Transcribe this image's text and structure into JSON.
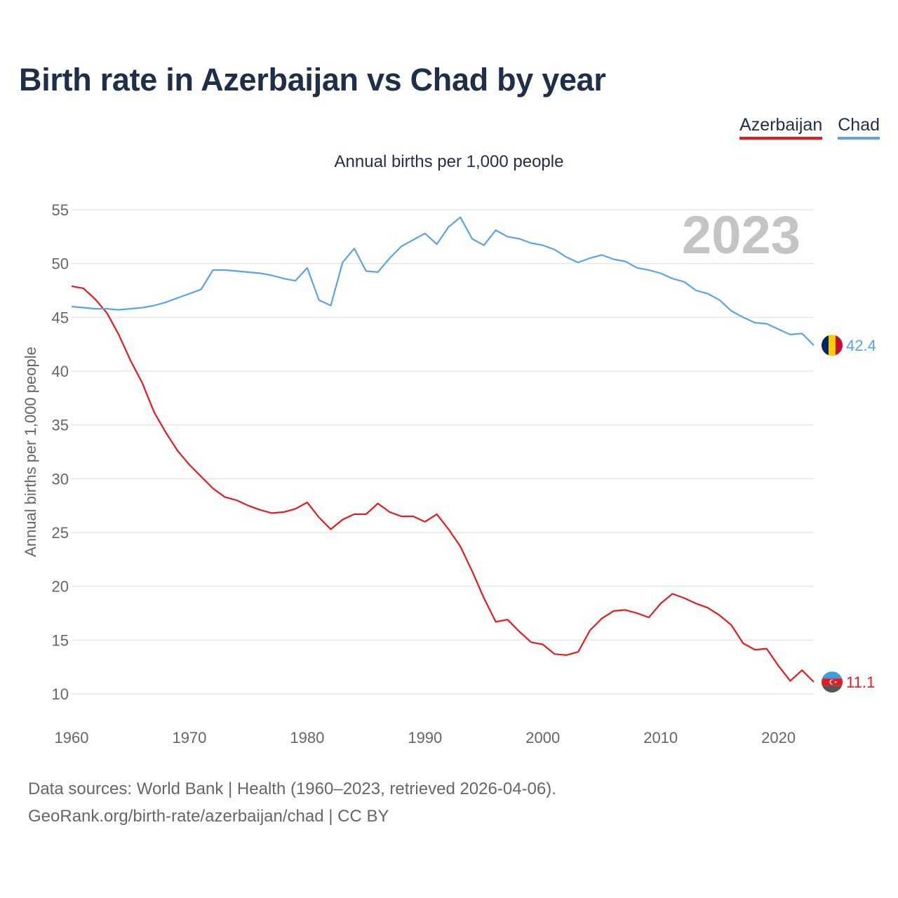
{
  "title": "Birth rate in Azerbaijan vs Chad by year",
  "legend": [
    {
      "label": "Azerbaijan",
      "color": "#e8191f"
    },
    {
      "label": "Chad",
      "color": "#5aa3e6"
    }
  ],
  "subtitle": "Annual births per 1,000 people",
  "year_watermark": "2023",
  "footer": {
    "line1": "Data sources: World Bank | Health (1960–2023, retrieved 2026-04-06).",
    "line2": "GeoRank.org/birth-rate/azerbaijan/chad | CC BY"
  },
  "chart_data": {
    "type": "line",
    "title": "Birth rate in Azerbaijan vs Chad by year",
    "xlabel": "",
    "ylabel": "Annual births per 1,000 people",
    "xlim": [
      1960,
      2023
    ],
    "ylim": [
      10,
      55
    ],
    "xticks": [
      1960,
      1970,
      1980,
      1990,
      2000,
      2010,
      2020
    ],
    "yticks": [
      10,
      15,
      20,
      25,
      30,
      35,
      40,
      45,
      50,
      55
    ],
    "grid": true,
    "legend_position": "top-right",
    "x": [
      1960,
      1961,
      1962,
      1963,
      1964,
      1965,
      1966,
      1967,
      1968,
      1969,
      1970,
      1971,
      1972,
      1973,
      1974,
      1975,
      1976,
      1977,
      1978,
      1979,
      1980,
      1981,
      1982,
      1983,
      1984,
      1985,
      1986,
      1987,
      1988,
      1989,
      1990,
      1991,
      1992,
      1993,
      1994,
      1995,
      1996,
      1997,
      1998,
      1999,
      2000,
      2001,
      2002,
      2003,
      2004,
      2005,
      2006,
      2007,
      2008,
      2009,
      2010,
      2011,
      2012,
      2013,
      2014,
      2015,
      2016,
      2017,
      2018,
      2019,
      2020,
      2021,
      2022,
      2023
    ],
    "series": [
      {
        "name": "Azerbaijan",
        "color": "#e8191f",
        "end_label": "11.1",
        "values": [
          47.9,
          47.7,
          46.7,
          45.4,
          43.4,
          41.0,
          38.9,
          36.2,
          34.3,
          32.6,
          31.3,
          30.2,
          29.1,
          28.3,
          28.0,
          27.5,
          27.1,
          26.8,
          26.9,
          27.2,
          27.8,
          26.4,
          25.3,
          26.2,
          26.7,
          26.7,
          27.7,
          26.9,
          26.5,
          26.5,
          26.0,
          26.7,
          25.3,
          23.7,
          21.4,
          18.9,
          16.7,
          16.9,
          15.8,
          14.8,
          14.6,
          13.7,
          13.6,
          13.9,
          15.9,
          17.0,
          17.7,
          17.8,
          17.5,
          17.1,
          18.4,
          19.3,
          18.9,
          18.4,
          18.0,
          17.3,
          16.4,
          14.7,
          14.1,
          14.2,
          12.6,
          11.2,
          12.2,
          11.1
        ]
      },
      {
        "name": "Chad",
        "color": "#5aa3e6",
        "end_label": "42.4",
        "values": [
          46.0,
          45.9,
          45.8,
          45.8,
          45.7,
          45.8,
          45.9,
          46.1,
          46.4,
          46.8,
          47.2,
          47.6,
          49.4,
          49.4,
          49.3,
          49.2,
          49.1,
          48.9,
          48.6,
          48.4,
          49.6,
          46.6,
          46.1,
          50.1,
          51.4,
          49.3,
          49.2,
          50.5,
          51.6,
          52.2,
          52.8,
          51.8,
          53.4,
          54.3,
          52.3,
          51.7,
          53.1,
          52.5,
          52.3,
          51.9,
          51.7,
          51.3,
          50.6,
          50.1,
          50.5,
          50.8,
          50.4,
          50.2,
          49.6,
          49.4,
          49.1,
          48.6,
          48.3,
          47.5,
          47.2,
          46.6,
          45.6,
          45.0,
          44.5,
          44.4,
          43.9,
          43.4,
          43.5,
          42.4
        ]
      }
    ]
  }
}
